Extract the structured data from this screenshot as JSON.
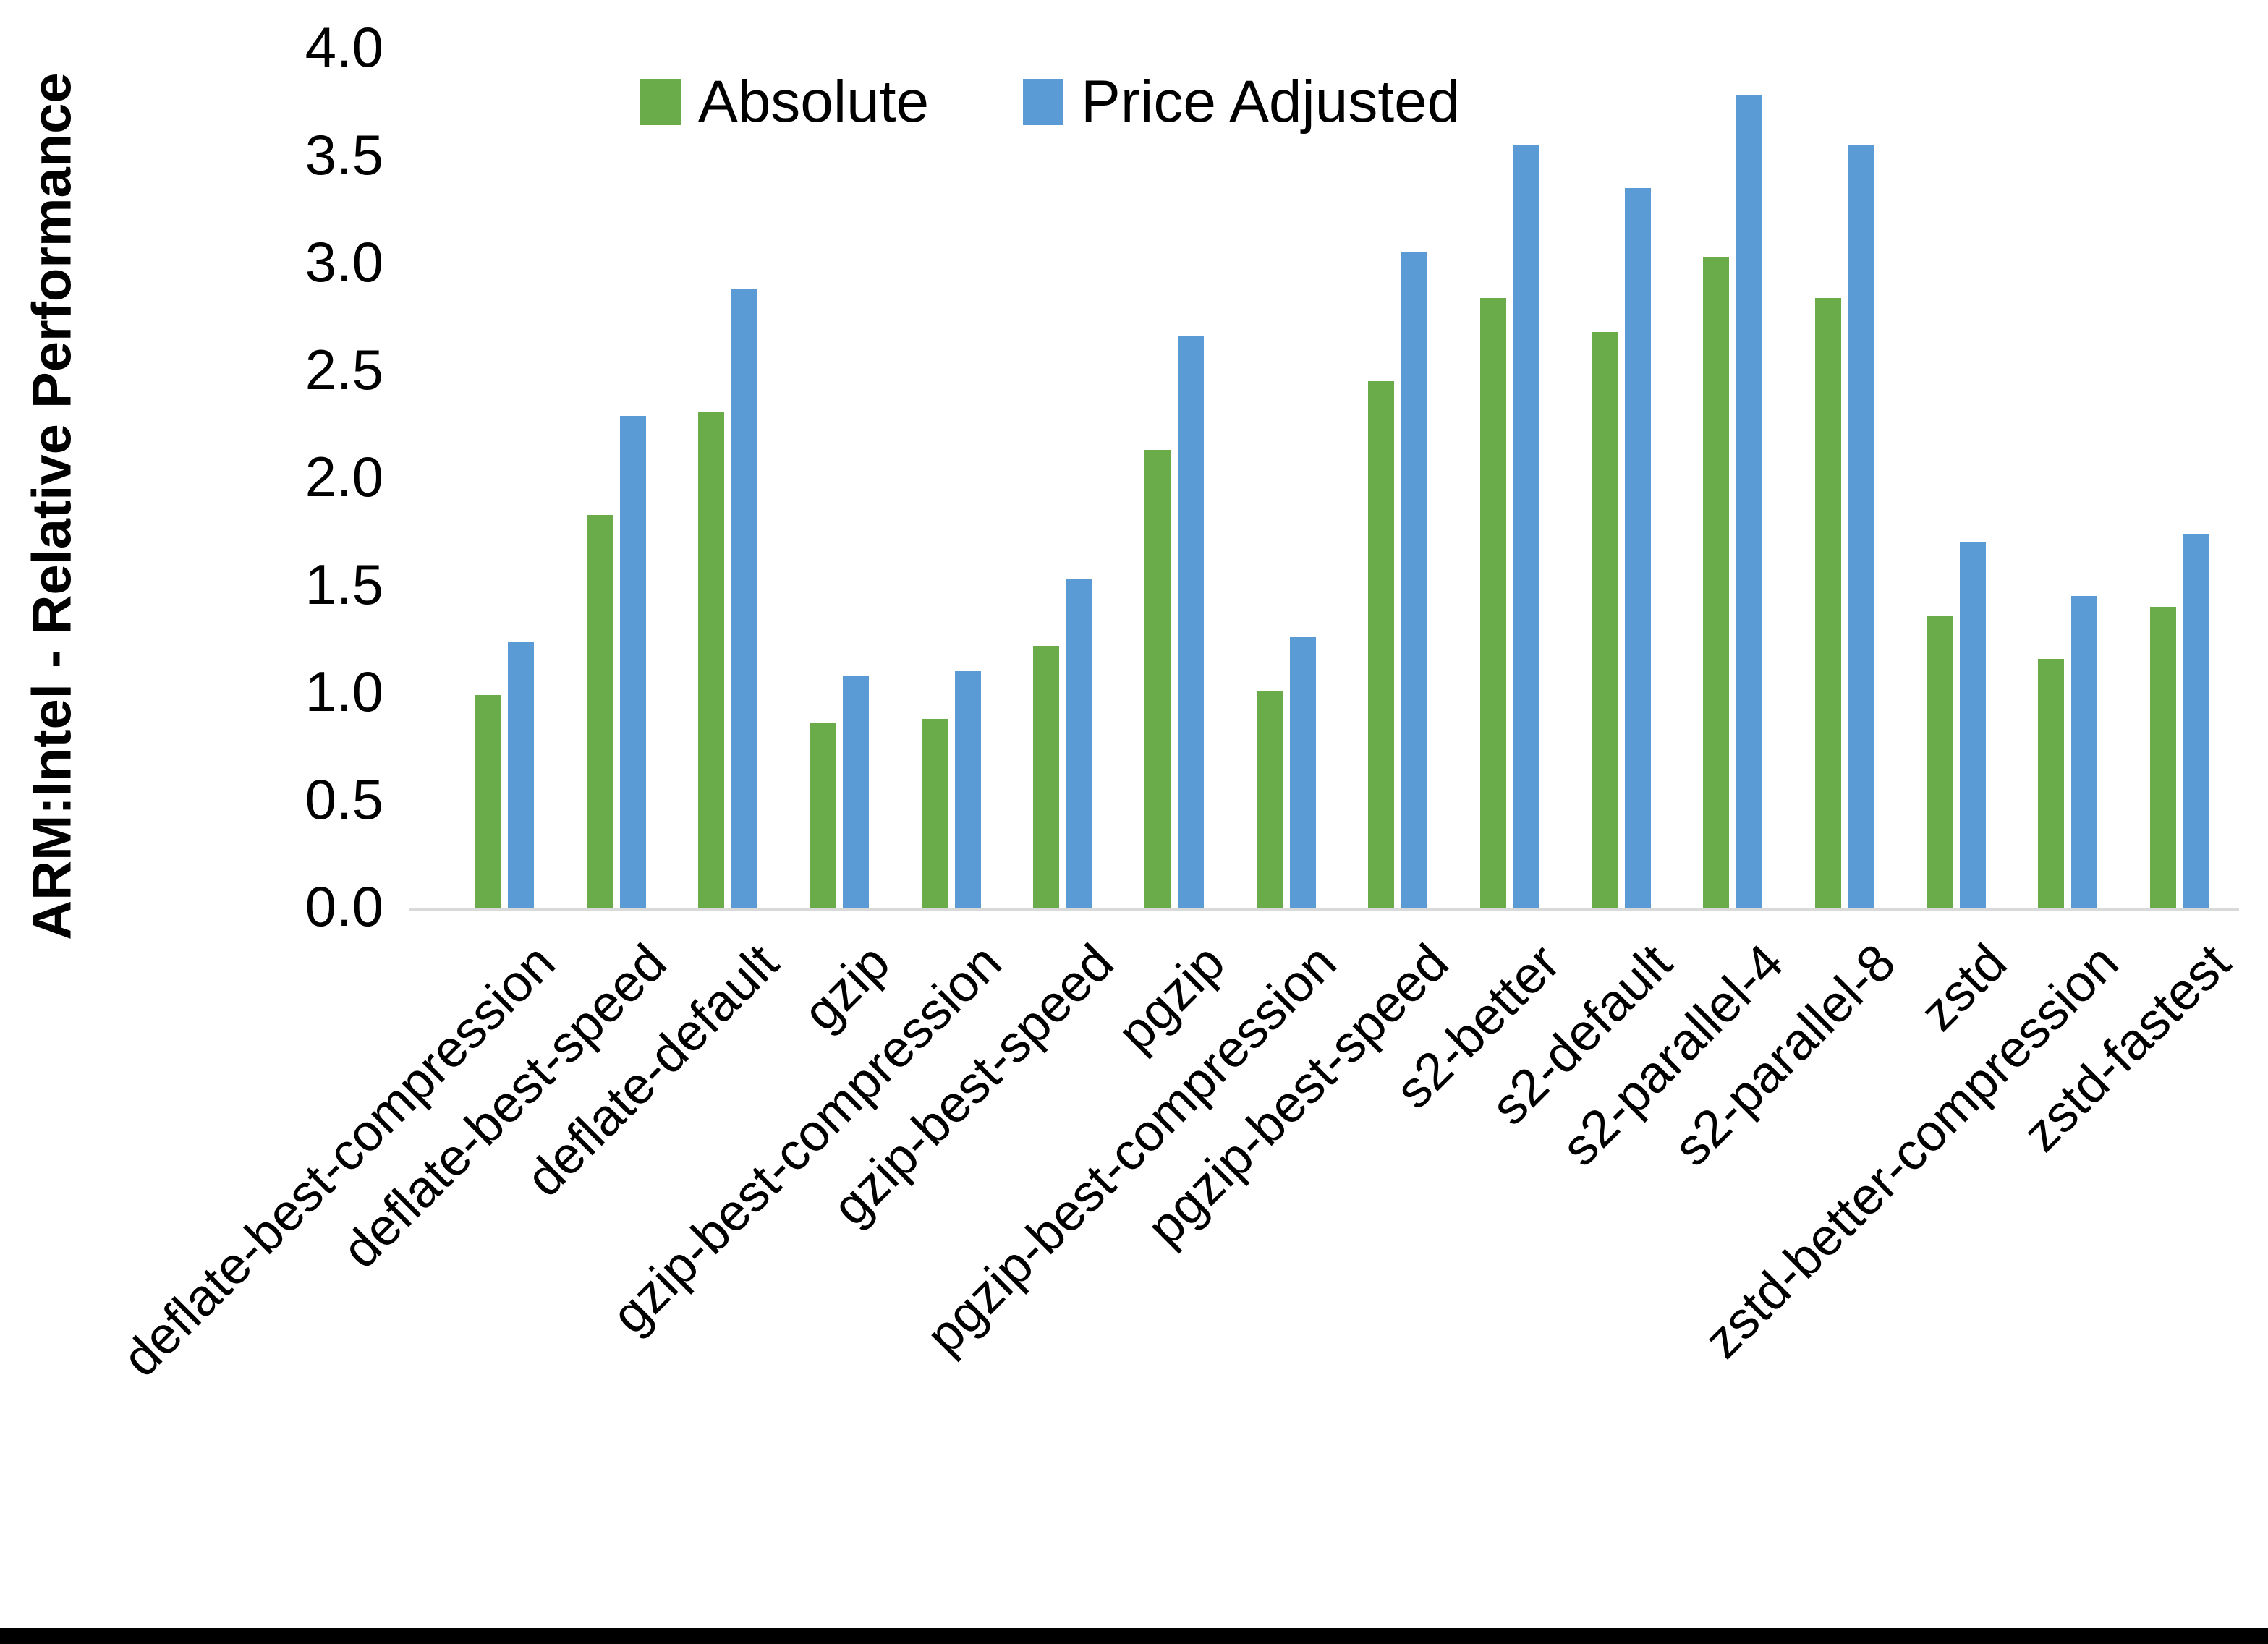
{
  "figure": {
    "background": "#ffffff",
    "bottom_border_color": "#000000",
    "axis_line_color": "#d9d9d9"
  },
  "chart_data": {
    "type": "bar",
    "title": "",
    "xlabel": "",
    "ylabel": "ARM:Intel - Relative Performance",
    "ylim": [
      0.0,
      4.0
    ],
    "ytick_step": 0.5,
    "ytick_labels": [
      "4.0",
      "3.5",
      "3.0",
      "2.5",
      "2.0",
      "1.5",
      "1.0",
      "0.5",
      "0.0"
    ],
    "grid": "off",
    "legend_position": "top-center",
    "x_label_rotation_deg": 45,
    "categories": [
      "deflate-best-compression",
      "deflate-best-speed",
      "deflate-default",
      "gzip",
      "gzip-best-compression",
      "gzip-best-speed",
      "pgzip",
      "pgzip-best-compression",
      "pgzip-best-speed",
      "s2-better",
      "s2-default",
      "s2-parallel-4",
      "s2-parallel-8",
      "zstd",
      "zstd-better-compression",
      "zstd-fastest"
    ],
    "series": [
      {
        "name": "Absolute",
        "color": "#6aab4a",
        "values": [
          1.0,
          1.84,
          2.32,
          0.87,
          0.89,
          1.23,
          2.14,
          1.02,
          2.46,
          2.85,
          2.69,
          3.04,
          2.85,
          1.37,
          1.17,
          1.41
        ]
      },
      {
        "name": "Price Adjusted",
        "color": "#5b9bd5",
        "values": [
          1.25,
          2.3,
          2.89,
          1.09,
          1.11,
          1.54,
          2.67,
          1.27,
          3.06,
          3.56,
          3.36,
          3.79,
          3.56,
          1.71,
          1.46,
          1.75
        ]
      }
    ]
  }
}
